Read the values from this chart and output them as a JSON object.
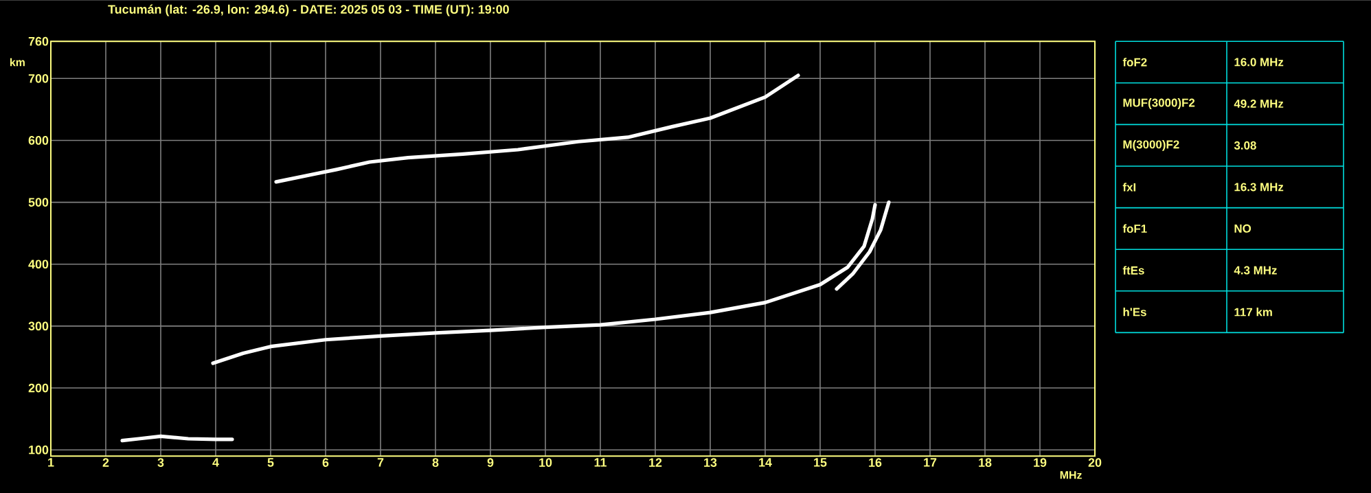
{
  "chart_data": [
    {
      "type": "line",
      "title": "Tucumán (lat: -26.9, lon: 294.6) - DATE: 2025 05 03 - TIME (UT): 19:00",
      "xlabel": "MHz",
      "ylabel": "km",
      "xlim": [
        1,
        20
      ],
      "ylim": [
        90,
        760
      ],
      "xticks": [
        1,
        2,
        3,
        4,
        5,
        6,
        7,
        8,
        9,
        10,
        11,
        12,
        13,
        14,
        15,
        16,
        17,
        18,
        19,
        20
      ],
      "yticks": [
        100,
        200,
        300,
        400,
        500,
        600,
        700,
        760
      ],
      "grid": true,
      "series": [
        {
          "color": "#ffffff",
          "x": [
            2.3,
            2.6,
            3.0,
            3.5,
            4.0,
            4.3
          ],
          "values": [
            115,
            118,
            122,
            118,
            117,
            117
          ]
        },
        {
          "color": "#ffffff",
          "x": [
            3.95,
            4.5,
            5,
            6,
            7,
            8,
            9,
            10,
            11,
            12,
            13,
            14,
            15,
            15.5,
            15.8,
            15.95,
            16.0
          ],
          "values": [
            240,
            256,
            267,
            278,
            284,
            289,
            293,
            298,
            302,
            311,
            322,
            338,
            367,
            395,
            429,
            473,
            496
          ]
        },
        {
          "color": "#ffffff",
          "x": [
            15.3,
            15.6,
            15.9,
            16.1,
            16.25
          ],
          "values": [
            360,
            385,
            420,
            455,
            500
          ]
        },
        {
          "color": "#ffffff",
          "x": [
            5.1,
            6.2,
            6.8,
            7.5,
            8.5,
            9.5,
            10.6,
            11.5,
            12.3,
            13.0,
            14.0,
            14.6
          ],
          "values": [
            533,
            553,
            565,
            572,
            578,
            585,
            598,
            605,
            622,
            636,
            670,
            705
          ]
        }
      ]
    },
    {
      "type": "other",
      "categories": [
        "foF2",
        "MUF(3000)F2",
        "M(3000)F2",
        "fxI",
        "foF1",
        "ftEs",
        "h'Es"
      ],
      "annotations": [
        "16.0 MHz",
        "49.2 MHz",
        "3.08",
        "16.3 MHz",
        "NO",
        "4.3 MHz",
        "117 km"
      ]
    }
  ]
}
